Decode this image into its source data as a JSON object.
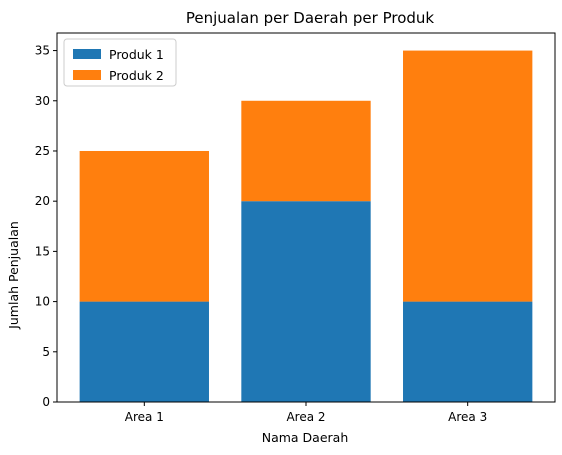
{
  "chart_data": {
    "type": "bar",
    "stacked": true,
    "title": "Penjualan per Daerah per Produk",
    "xlabel": "Nama Daerah",
    "ylabel": "Jumlah Penjualan",
    "categories": [
      "Area 1",
      "Area 2",
      "Area 3"
    ],
    "series": [
      {
        "name": "Produk 1",
        "values": [
          10,
          20,
          10
        ],
        "color": "#1f77b4"
      },
      {
        "name": "Produk 2",
        "values": [
          15,
          10,
          25
        ],
        "color": "#ff7f0e"
      }
    ],
    "ylim": [
      0,
      36.75
    ],
    "yticks": [
      0,
      5,
      10,
      15,
      20,
      25,
      30,
      35
    ],
    "legend": "top-left",
    "grid": false
  }
}
